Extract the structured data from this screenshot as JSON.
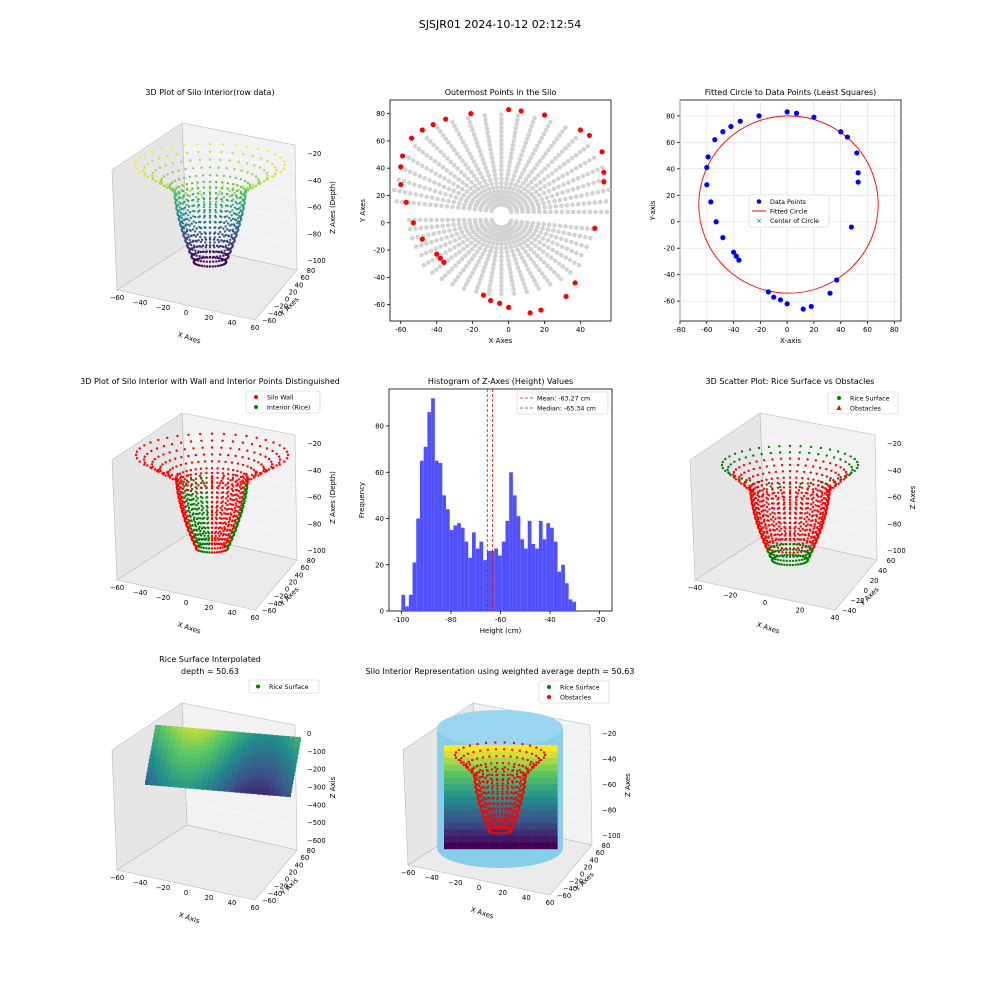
{
  "figure_title": "SJSJR01 2024-10-12 02:12:54",
  "colors": {
    "gray_points": "#d3d3d3",
    "red": "#ff0000",
    "blue": "#0000ff",
    "green": "#008000",
    "hist_bar": "#5050ff",
    "cylinder": "#87ceeb"
  },
  "chart_data": [
    {
      "id": "p1",
      "type": "scatter",
      "subtype": "3d-surface-scatter",
      "title": "3D Plot of Silo Interior(row data)",
      "xlabel": "X Axes",
      "ylabel": "Y Axes",
      "zlabel": "Z Axes (Depth)",
      "x_ticks": [
        "−60",
        "−40",
        "−20",
        "0",
        "20",
        "40",
        "60"
      ],
      "y_ticks": [
        "80",
        "60",
        "40",
        "20",
        "0",
        "−20",
        "−40",
        "−60"
      ],
      "z_ticks": [
        "−20",
        "−40",
        "−60",
        "−80",
        "−100"
      ],
      "colormap": "viridis"
    },
    {
      "id": "p2",
      "type": "scatter",
      "title": "Outermost Points in the Silo",
      "xlabel": "X Axes",
      "ylabel": "Y Axes",
      "xlim": [
        -66,
        57
      ],
      "ylim": [
        -72,
        90
      ],
      "x_ticks": [
        -60,
        -40,
        -20,
        0,
        20,
        40
      ],
      "y_ticks": [
        -60,
        -40,
        -20,
        0,
        20,
        40,
        60,
        80
      ],
      "outer_points": [
        [
          -60,
          28
        ],
        [
          -60,
          41
        ],
        [
          -59,
          49
        ],
        [
          -57,
          15
        ],
        [
          -53,
          0
        ],
        [
          -54,
          62
        ],
        [
          -48,
          -12
        ],
        [
          -48,
          68
        ],
        [
          -42,
          72
        ],
        [
          -40,
          -23
        ],
        [
          -38,
          -26
        ],
        [
          -36,
          -29
        ],
        [
          -35,
          76
        ],
        [
          -21,
          80
        ],
        [
          -14,
          -53
        ],
        [
          -10,
          -57
        ],
        [
          -5,
          -59
        ],
        [
          0,
          -62
        ],
        [
          0,
          83
        ],
        [
          7,
          82
        ],
        [
          12,
          -66
        ],
        [
          18,
          -64
        ],
        [
          20,
          79
        ],
        [
          32,
          -54
        ],
        [
          37,
          -44
        ],
        [
          40,
          68
        ],
        [
          45,
          64
        ],
        [
          48,
          -4
        ],
        [
          52,
          52
        ],
        [
          53,
          37
        ],
        [
          53,
          30
        ]
      ]
    },
    {
      "id": "p3",
      "type": "scatter",
      "title": "Fitted Circle to Data Points (Least Squares)",
      "xlabel": "X-axis",
      "ylabel": "Y-axis",
      "xlim": [
        -80,
        85
      ],
      "ylim": [
        -75,
        92
      ],
      "x_ticks": [
        -80,
        -60,
        -40,
        -20,
        0,
        20,
        40,
        60,
        80
      ],
      "y_ticks": [
        -60,
        -40,
        -20,
        0,
        20,
        40,
        60,
        80
      ],
      "circle": {
        "cx": 1,
        "cy": 13,
        "r": 67
      },
      "legend": [
        "Data Points",
        "Fitted Circle",
        "Center of Circle"
      ]
    },
    {
      "id": "p4",
      "type": "scatter",
      "subtype": "3d-scatter",
      "title": "3D Plot of Silo Interior with Wall and Interior Points Distinguished",
      "xlabel": "X Axes",
      "ylabel": "Y Axes",
      "zlabel": "Z Axes (Depth)",
      "x_ticks": [
        "−60",
        "−40",
        "−20",
        "0",
        "20",
        "40",
        "60"
      ],
      "y_ticks": [
        "80",
        "60",
        "40",
        "20",
        "0",
        "−20",
        "−40",
        "−60"
      ],
      "z_ticks": [
        "−20",
        "−40",
        "−60",
        "−80",
        "−100"
      ],
      "legend": [
        "Silo Wall",
        "Interior (Rice)"
      ]
    },
    {
      "id": "p5",
      "type": "bar",
      "subtype": "histogram",
      "title": "Histogram of Z-Axes (Height) Values",
      "xlabel": "Height (cm)",
      "ylabel": "Frequency",
      "xlim": [
        -105,
        -15
      ],
      "ylim": [
        0,
        96
      ],
      "x_ticks": [
        -100,
        -80,
        -60,
        -40,
        -20
      ],
      "y_ticks": [
        0,
        20,
        40,
        60,
        80
      ],
      "bin_start": -100,
      "bin_width": 1.5,
      "values": [
        7,
        2,
        7,
        21,
        40,
        65,
        71,
        86,
        92,
        65,
        64,
        50,
        44,
        35,
        37,
        38,
        36,
        30,
        23,
        34,
        27,
        30,
        22,
        26,
        26,
        27,
        24,
        30,
        39,
        60,
        50,
        41,
        31,
        27,
        39,
        29,
        27,
        39,
        31,
        38,
        36,
        30,
        17,
        20,
        12,
        5,
        4
      ],
      "mean": -63.27,
      "median": -65.34,
      "legend": [
        "Mean: -63.27 cm",
        "Median: -65.34 cm"
      ]
    },
    {
      "id": "p6",
      "type": "scatter",
      "subtype": "3d-scatter",
      "title": "3D Scatter Plot: Rice Surface vs Obstacles",
      "xlabel": "X Axes",
      "ylabel": "Y Axes",
      "zlabel": "Z Axes",
      "x_ticks": [
        "−40",
        "−20",
        "0",
        "20",
        "40"
      ],
      "y_ticks": [
        "60",
        "40",
        "20",
        "0",
        "−20",
        "−40"
      ],
      "z_ticks": [
        "−20",
        "−40",
        "−60",
        "−80",
        "−100"
      ],
      "legend": [
        "Rice Surface",
        "Obstacles"
      ]
    },
    {
      "id": "p7",
      "type": "scatter",
      "subtype": "3d-surface",
      "title": "Rice Surface Interpolated",
      "subtitle": "depth = 50.63",
      "xlabel": "X Axis",
      "ylabel": "Y Axis",
      "zlabel": "Z Axis",
      "x_ticks": [
        "−60",
        "−40",
        "−20",
        "0",
        "20",
        "40",
        "60"
      ],
      "y_ticks": [
        "80",
        "60",
        "40",
        "20",
        "0",
        "−20",
        "−40",
        "−60"
      ],
      "z_ticks": [
        "0",
        "−100",
        "−200",
        "−300",
        "−400",
        "−500",
        "−600"
      ],
      "legend": [
        "Rice Surface"
      ]
    },
    {
      "id": "p8",
      "type": "scatter",
      "subtype": "3d-surface",
      "title": "Silo Interior Representation using weighted average depth = 50.63",
      "xlabel": "X Axes",
      "ylabel": "Y Axes",
      "zlabel": "Z Axes",
      "x_ticks": [
        "−60",
        "−40",
        "−20",
        "0",
        "20",
        "40",
        "60"
      ],
      "y_ticks": [
        "80",
        "60",
        "40",
        "20",
        "0",
        "−20",
        "−40",
        "−60"
      ],
      "z_ticks": [
        "−20",
        "−40",
        "−60",
        "−80",
        "−100"
      ],
      "legend": [
        "Rice Surface",
        "Obstacles"
      ]
    }
  ]
}
